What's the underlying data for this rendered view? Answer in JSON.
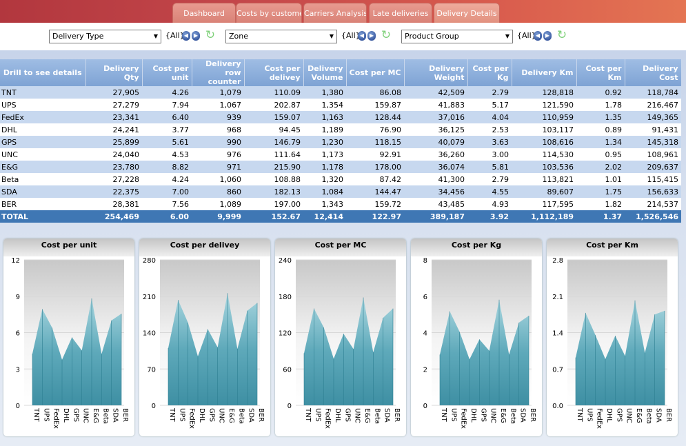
{
  "tabs": [
    "Dashboard",
    "Costs by customer",
    "Carriers Analysis",
    "Late deliveries",
    "Delivery Details"
  ],
  "filters": [
    {
      "label": "Delivery Type",
      "all": "{All}"
    },
    {
      "label": "Zone",
      "all": "{All}"
    },
    {
      "label": "Product Group",
      "all": "{All}"
    }
  ],
  "table": {
    "headers": [
      "Drill to see details",
      "Delivery Qty",
      "Cost per unit",
      "Delivery row counter",
      "Cost per delivey",
      "Delivery Volume",
      "Cost per MC",
      "Delivery Weight",
      "Cost per Kg",
      "Delivery Km",
      "Cost per Km",
      "Delivery Cost"
    ],
    "rows": [
      [
        "TNT",
        "27,905",
        "4.26",
        "1,079",
        "110.09",
        "1,380",
        "86.08",
        "42,509",
        "2.79",
        "128,818",
        "0.92",
        "118,784"
      ],
      [
        "UPS",
        "27,279",
        "7.94",
        "1,067",
        "202.87",
        "1,354",
        "159.87",
        "41,883",
        "5.17",
        "121,590",
        "1.78",
        "216,467"
      ],
      [
        "FedEx",
        "23,341",
        "6.40",
        "939",
        "159.07",
        "1,163",
        "128.44",
        "37,016",
        "4.04",
        "110,959",
        "1.35",
        "149,365"
      ],
      [
        "DHL",
        "24,241",
        "3.77",
        "968",
        "94.45",
        "1,189",
        "76.90",
        "36,125",
        "2.53",
        "103,117",
        "0.89",
        "91,431"
      ],
      [
        "GPS",
        "25,899",
        "5.61",
        "990",
        "146.79",
        "1,230",
        "118.15",
        "40,079",
        "3.63",
        "108,616",
        "1.34",
        "145,318"
      ],
      [
        "UNC",
        "24,040",
        "4.53",
        "976",
        "111.64",
        "1,173",
        "92.91",
        "36,260",
        "3.00",
        "114,530",
        "0.95",
        "108,961"
      ],
      [
        "E&G",
        "23,780",
        "8.82",
        "971",
        "215.90",
        "1,178",
        "178.00",
        "36,074",
        "5.81",
        "103,536",
        "2.02",
        "209,637"
      ],
      [
        "Beta",
        "27,228",
        "4.24",
        "1,060",
        "108.88",
        "1,320",
        "87.42",
        "41,300",
        "2.79",
        "113,821",
        "1.01",
        "115,415"
      ],
      [
        "SDA",
        "22,375",
        "7.00",
        "860",
        "182.13",
        "1,084",
        "144.47",
        "34,456",
        "4.55",
        "89,607",
        "1.75",
        "156,633"
      ],
      [
        "BER",
        "28,381",
        "7.56",
        "1,089",
        "197.00",
        "1,343",
        "159.72",
        "43,485",
        "4.93",
        "117,595",
        "1.82",
        "214,537"
      ]
    ],
    "total": [
      "TOTAL",
      "254,469",
      "6.00",
      "9,999",
      "152.67",
      "12,414",
      "122.97",
      "389,187",
      "3.92",
      "1,112,189",
      "1.37",
      "1,526,546"
    ]
  },
  "colors": {
    "area_fill": "#3e8fa3",
    "area_top": "#a9d6df",
    "accent": "#3f77b4"
  },
  "chart_data": [
    {
      "type": "area",
      "title": "Cost per unit",
      "categories": [
        "TNT",
        "UPS",
        "FedEx",
        "DHL",
        "GPS",
        "UNC",
        "E&G",
        "Beta",
        "SDA",
        "BER"
      ],
      "values": [
        4.26,
        7.94,
        6.4,
        3.77,
        5.61,
        4.53,
        8.82,
        4.24,
        7.0,
        7.56
      ],
      "ylim": [
        0,
        12
      ],
      "yticks": [
        "12",
        "9",
        "6",
        "3",
        "0"
      ],
      "tickvals": [
        12,
        9,
        6,
        3,
        0
      ]
    },
    {
      "type": "area",
      "title": "Cost per delivey",
      "categories": [
        "TNT",
        "UPS",
        "FedEx",
        "DHL",
        "GPS",
        "UNC",
        "E&G",
        "Beta",
        "SDA",
        "BER"
      ],
      "values": [
        110.09,
        202.87,
        159.07,
        94.45,
        146.79,
        111.64,
        215.9,
        108.88,
        182.13,
        197.0
      ],
      "ylim": [
        0,
        280
      ],
      "yticks": [
        "280",
        "210",
        "140",
        "70",
        "0"
      ],
      "tickvals": [
        280,
        210,
        140,
        70,
        0
      ]
    },
    {
      "type": "area",
      "title": "Cost per MC",
      "categories": [
        "TNT",
        "UPS",
        "FedEx",
        "DHL",
        "GPS",
        "UNC",
        "E&G",
        "Beta",
        "SDA",
        "BER"
      ],
      "values": [
        86.08,
        159.87,
        128.44,
        76.9,
        118.15,
        92.91,
        178.0,
        87.42,
        144.47,
        159.72
      ],
      "ylim": [
        0,
        240
      ],
      "yticks": [
        "240",
        "180",
        "120",
        "60",
        "0"
      ],
      "tickvals": [
        240,
        180,
        120,
        60,
        0
      ]
    },
    {
      "type": "area",
      "title": "Cost per Kg",
      "categories": [
        "TNT",
        "UPS",
        "FedEx",
        "DHL",
        "GPS",
        "UNC",
        "E&G",
        "Beta",
        "SDA",
        "BER"
      ],
      "values": [
        2.79,
        5.17,
        4.04,
        2.53,
        3.63,
        3.0,
        5.81,
        2.79,
        4.55,
        4.93
      ],
      "ylim": [
        0,
        8
      ],
      "yticks": [
        "8",
        "6",
        "4",
        "2",
        "0"
      ],
      "tickvals": [
        8,
        6,
        4,
        2,
        0
      ]
    },
    {
      "type": "area",
      "title": "Cost per Km",
      "categories": [
        "TNT",
        "UPS",
        "FedEx",
        "DHL",
        "GPS",
        "UNC",
        "E&G",
        "Beta",
        "SDA",
        "BER"
      ],
      "values": [
        0.92,
        1.78,
        1.35,
        0.89,
        1.34,
        0.95,
        2.02,
        1.01,
        1.75,
        1.82
      ],
      "ylim": [
        0,
        2.8
      ],
      "yticks": [
        "2.8",
        "2.1",
        "1.4",
        "0.7",
        "0.0"
      ],
      "tickvals": [
        2.8,
        2.1,
        1.4,
        0.7,
        0
      ]
    }
  ]
}
